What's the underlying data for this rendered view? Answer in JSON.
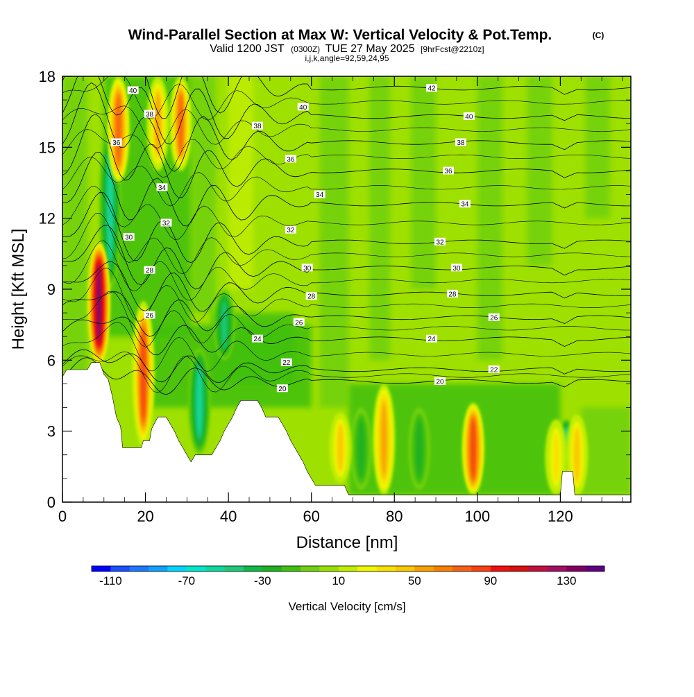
{
  "title": {
    "main": "Wind-Parallel Section at Max W: Vertical Velocity & Pot.Temp.",
    "copyright": "(C)",
    "valid_prefix": "Valid 1200 JST",
    "valid_utc": "(0300Z)",
    "valid_date": "TUE 27 May 2025",
    "forecast": "[9hrFcst@2210z]",
    "indices": "i,j,k,angle=92,59,24,95"
  },
  "chart_data": {
    "type": "heatmap",
    "xlabel": "Distance [nm]",
    "ylabel": "Height [Kft MSL]",
    "xlim": [
      0,
      137
    ],
    "ylim": [
      0,
      18
    ],
    "x_ticks": [
      0,
      20,
      40,
      60,
      80,
      100,
      120
    ],
    "y_ticks": [
      0,
      3,
      6,
      9,
      12,
      15,
      18
    ],
    "colorbar": {
      "title": "Vertical Velocity [cm/s]",
      "tick_labels": [
        "-110",
        "-70",
        "-30",
        "10",
        "50",
        "90",
        "130"
      ],
      "tick_values": [
        -110,
        -70,
        -30,
        10,
        50,
        90,
        130
      ],
      "levels": [
        -120,
        -110,
        -100,
        -90,
        -80,
        -70,
        -60,
        -50,
        -40,
        -30,
        -20,
        -10,
        0,
        10,
        20,
        30,
        40,
        50,
        60,
        70,
        80,
        90,
        100,
        110,
        120,
        130,
        140,
        150
      ],
      "colors": [
        "#0000ff",
        "#1a50ff",
        "#1e78ff",
        "#10a0ff",
        "#00d4ff",
        "#00e8c8",
        "#10d8a0",
        "#20c878",
        "#10b848",
        "#20b020",
        "#40c010",
        "#70d010",
        "#98e000",
        "#c0ee00",
        "#f0f800",
        "#f8e000",
        "#f8c800",
        "#f8a000",
        "#f88000",
        "#f86018",
        "#f84010",
        "#f01010",
        "#d81010",
        "#c01040",
        "#a01060",
        "#800060",
        "#600080"
      ]
    },
    "terrain": [
      {
        "x": 0,
        "z": 5.3
      },
      {
        "x": 1,
        "z": 5.6
      },
      {
        "x": 6,
        "z": 5.6
      },
      {
        "x": 7,
        "z": 5.9
      },
      {
        "x": 9,
        "z": 5.9
      },
      {
        "x": 10,
        "z": 5.4
      },
      {
        "x": 11,
        "z": 5.2
      },
      {
        "x": 12,
        "z": 4.5
      },
      {
        "x": 13,
        "z": 3.6
      },
      {
        "x": 14,
        "z": 3.2
      },
      {
        "x": 14.5,
        "z": 2.3
      },
      {
        "x": 19,
        "z": 2.3
      },
      {
        "x": 19.5,
        "z": 2.6
      },
      {
        "x": 21,
        "z": 2.6
      },
      {
        "x": 21.5,
        "z": 3.1
      },
      {
        "x": 23,
        "z": 3.6
      },
      {
        "x": 25,
        "z": 3.6
      },
      {
        "x": 26,
        "z": 3.3
      },
      {
        "x": 27,
        "z": 3.0
      },
      {
        "x": 28,
        "z": 2.6
      },
      {
        "x": 29,
        "z": 2.3
      },
      {
        "x": 30,
        "z": 2.0
      },
      {
        "x": 31,
        "z": 1.7
      },
      {
        "x": 32,
        "z": 2.0
      },
      {
        "x": 36,
        "z": 2.0
      },
      {
        "x": 37,
        "z": 2.3
      },
      {
        "x": 38,
        "z": 2.6
      },
      {
        "x": 39,
        "z": 3.0
      },
      {
        "x": 40,
        "z": 3.3
      },
      {
        "x": 41,
        "z": 3.6
      },
      {
        "x": 42,
        "z": 4.0
      },
      {
        "x": 43,
        "z": 4.3
      },
      {
        "x": 47,
        "z": 4.3
      },
      {
        "x": 48,
        "z": 4.0
      },
      {
        "x": 49,
        "z": 3.6
      },
      {
        "x": 52,
        "z": 3.6
      },
      {
        "x": 53,
        "z": 3.3
      },
      {
        "x": 54,
        "z": 3.0
      },
      {
        "x": 55,
        "z": 2.6
      },
      {
        "x": 56,
        "z": 2.3
      },
      {
        "x": 57,
        "z": 2.0
      },
      {
        "x": 58,
        "z": 1.7
      },
      {
        "x": 59,
        "z": 1.3
      },
      {
        "x": 60,
        "z": 1.0
      },
      {
        "x": 61,
        "z": 0.7
      },
      {
        "x": 68,
        "z": 0.7
      },
      {
        "x": 69,
        "z": 0.3
      },
      {
        "x": 120,
        "z": 0.3
      },
      {
        "x": 120.5,
        "z": 1.3
      },
      {
        "x": 123,
        "z": 1.3
      },
      {
        "x": 123.5,
        "z": 0.3
      },
      {
        "x": 137,
        "z": 0.3
      }
    ],
    "updraft_cores": [
      {
        "x": 8.8,
        "zmin": 5.8,
        "zmax": 11.0,
        "peak": 130
      },
      {
        "x": 19.5,
        "zmin": 2.3,
        "zmax": 8.5,
        "peak": 85
      },
      {
        "x": 13.5,
        "zmin": 13.5,
        "zmax": 18,
        "peak": 70
      },
      {
        "x": 23,
        "zmin": 14.0,
        "zmax": 18,
        "peak": 55
      },
      {
        "x": 28.5,
        "zmin": 14.0,
        "zmax": 18,
        "peak": 75
      },
      {
        "x": 99,
        "zmin": 0.3,
        "zmax": 4.2,
        "peak": 80
      },
      {
        "x": 67,
        "zmin": 0.8,
        "zmax": 3.8,
        "peak": 45
      },
      {
        "x": 77.5,
        "zmin": 0.3,
        "zmax": 5.0,
        "peak": 50
      },
      {
        "x": 124,
        "zmin": 0.3,
        "zmax": 3.7,
        "peak": 45
      },
      {
        "x": 119,
        "zmin": 0.3,
        "zmax": 3.5,
        "peak": 35
      }
    ],
    "downdraft_cores": [
      {
        "x": 11.5,
        "zmin": 9,
        "zmax": 16,
        "peak": -60
      },
      {
        "x": 33,
        "zmin": 2.0,
        "zmax": 6.5,
        "peak": -55
      },
      {
        "x": 39,
        "zmin": 6,
        "zmax": 9,
        "peak": -50
      },
      {
        "x": 72,
        "zmin": 0.5,
        "zmax": 4,
        "peak": -30
      },
      {
        "x": 86,
        "zmin": 0.5,
        "zmax": 4,
        "peak": -30
      },
      {
        "x": 121.5,
        "zmin": 1.3,
        "zmax": 3.5,
        "peak": -60
      }
    ],
    "isentropes": [
      {
        "theta": "20",
        "z_far": 5.1,
        "label_x": 91,
        "label_z": 5.1
      },
      {
        "theta": "22",
        "z_far": 5.6,
        "label_x": 104,
        "label_z": 5.6
      },
      {
        "theta": "24",
        "z_far": 6.9,
        "label_x": 89,
        "label_z": 6.9
      },
      {
        "theta": "26",
        "z_far": 7.8,
        "label_x": 104,
        "label_z": 7.8
      },
      {
        "theta": "28",
        "z_far": 8.8,
        "label_x": 94,
        "label_z": 8.8
      },
      {
        "theta": "30",
        "z_far": 9.9,
        "label_x": 95,
        "label_z": 9.9
      },
      {
        "theta": "32",
        "z_far": 11.0,
        "label_x": 91,
        "label_z": 11.0
      },
      {
        "theta": "34",
        "z_far": 12.6,
        "label_x": 97,
        "label_z": 12.6
      },
      {
        "theta": "36",
        "z_far": 14.0,
        "label_x": 93,
        "label_z": 14.0
      },
      {
        "theta": "38",
        "z_far": 15.2,
        "label_x": 96,
        "label_z": 15.2
      },
      {
        "theta": "40",
        "z_far": 16.3,
        "label_x": 98,
        "label_z": 16.3
      },
      {
        "theta": "42",
        "z_far": 17.5,
        "label_x": 89,
        "label_z": 17.5
      }
    ],
    "isentrope_labels_left": [
      {
        "text": "20",
        "x": 53,
        "z": 4.8
      },
      {
        "text": "22",
        "x": 54,
        "z": 5.9
      },
      {
        "text": "24",
        "x": 47,
        "z": 6.9
      },
      {
        "text": "26",
        "x": 57,
        "z": 7.6
      },
      {
        "text": "26",
        "x": 21,
        "z": 7.9
      },
      {
        "text": "28",
        "x": 60,
        "z": 8.7
      },
      {
        "text": "28",
        "x": 21,
        "z": 9.8
      },
      {
        "text": "30",
        "x": 59,
        "z": 9.9
      },
      {
        "text": "30",
        "x": 16,
        "z": 11.2
      },
      {
        "text": "32",
        "x": 55,
        "z": 11.5
      },
      {
        "text": "32",
        "x": 25,
        "z": 11.8
      },
      {
        "text": "34",
        "x": 62,
        "z": 13.0
      },
      {
        "text": "34",
        "x": 24,
        "z": 13.3
      },
      {
        "text": "36",
        "x": 55,
        "z": 14.5
      },
      {
        "text": "36",
        "x": 13,
        "z": 15.2
      },
      {
        "text": "38",
        "x": 47,
        "z": 15.9
      },
      {
        "text": "38",
        "x": 21,
        "z": 16.4
      },
      {
        "text": "40",
        "x": 58,
        "z": 16.7
      },
      {
        "text": "40",
        "x": 17,
        "z": 17.4
      }
    ]
  }
}
